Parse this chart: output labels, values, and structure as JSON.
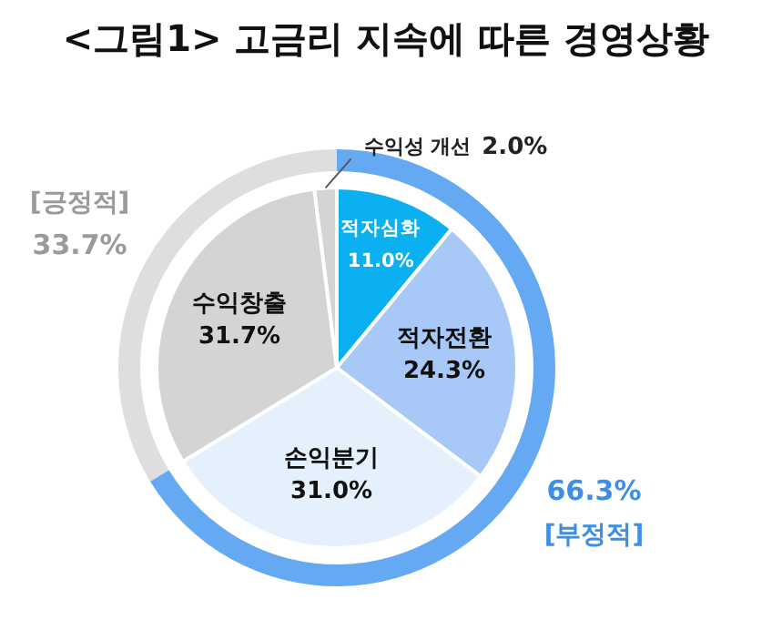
{
  "chart_data": [
    {
      "type": "donut",
      "title": "<그림1> 고금리 지속에 따른 경영상황",
      "categories": [
        "[부정적]",
        "[긍정적]"
      ],
      "values": [
        66.3,
        33.7
      ],
      "value_labels": [
        "66.3%",
        "33.7%"
      ],
      "colors": [
        "#65a9f2",
        "#dedede"
      ],
      "legend": false
    },
    {
      "type": "pie",
      "categories": [
        "적자심화",
        "적자전환",
        "손익분기",
        "수익창출",
        "수익성 개선"
      ],
      "values": [
        11.0,
        24.3,
        31.0,
        31.7,
        2.0
      ],
      "value_labels": [
        "11.0%",
        "24.3%",
        "31.0%",
        "31.7%",
        "2.0%"
      ],
      "colors": [
        "#0ab0f0",
        "#a8c8f8",
        "#e4f1fd",
        "#d4d4d4",
        "#d4d4d4"
      ],
      "legend": false
    }
  ]
}
